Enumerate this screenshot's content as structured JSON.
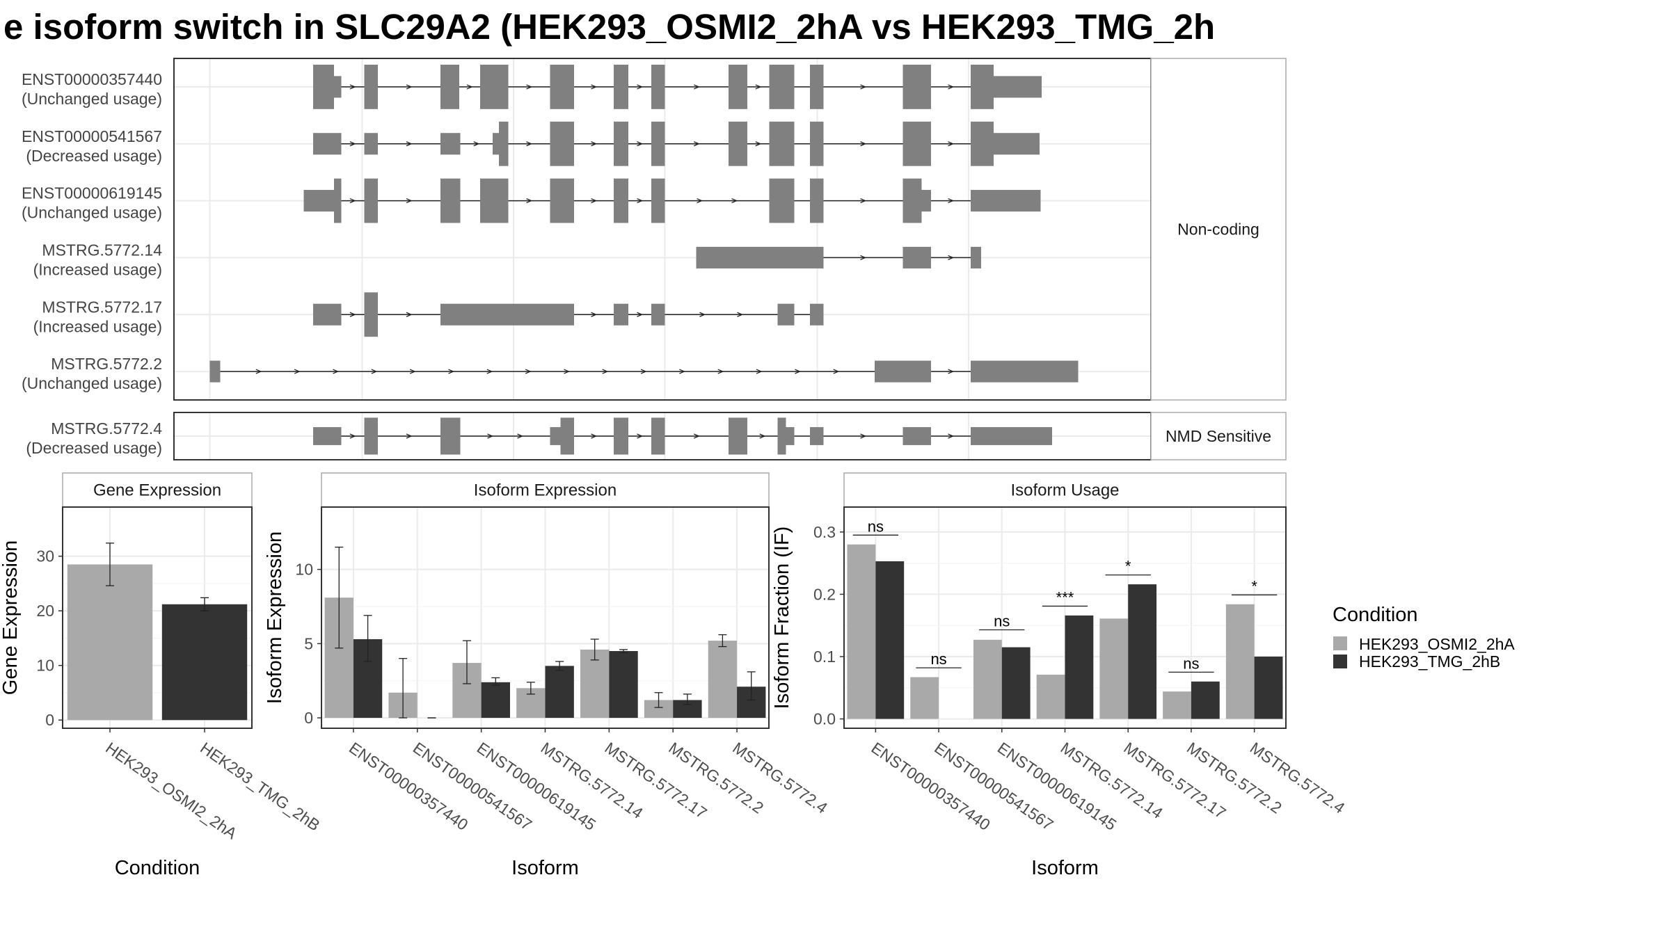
{
  "title": "e isoform switch in SLC29A2 (HEK293_OSMI2_2hA vs HEK293_TMG_2h",
  "colors": {
    "condA": "#a9a9a9",
    "condB": "#333333",
    "exon": "#808080",
    "grid": "#ebebeb",
    "panel_border": "#333333",
    "strip_border": "#aaaaaa"
  },
  "transcripts": {
    "groups": [
      {
        "label": "Non-coding",
        "tracks": [
          {
            "id": "ENST00000357440",
            "usage": "(Unchanged usage)",
            "exons": [
              [
                300,
                320
              ],
              [
                320,
                327
              ],
              [
                349,
                362
              ],
              [
                422,
                440
              ],
              [
                460,
                487
              ],
              [
                527,
                550
              ],
              [
                588,
                602
              ],
              [
                624,
                637
              ],
              [
                698,
                716
              ],
              [
                737,
                761
              ],
              [
                776,
                789
              ],
              [
                865,
                892
              ],
              [
                930,
                952
              ],
              [
                952,
                998
              ]
            ],
            "thick": [
              0,
              2,
              3,
              4,
              5,
              6,
              7,
              8,
              9,
              10,
              11,
              12
            ]
          },
          {
            "id": "ENST00000541567",
            "usage": "(Decreased usage)",
            "exons": [
              [
                300,
                327
              ],
              [
                349,
                362
              ],
              [
                422,
                441
              ],
              [
                472,
                478
              ],
              [
                478,
                487
              ],
              [
                527,
                550
              ],
              [
                588,
                602
              ],
              [
                624,
                637
              ],
              [
                698,
                716
              ],
              [
                737,
                761
              ],
              [
                776,
                789
              ],
              [
                865,
                892
              ],
              [
                930,
                952
              ],
              [
                952,
                996
              ]
            ],
            "thick": [
              4,
              5,
              6,
              7,
              8,
              9,
              10,
              11,
              12
            ]
          },
          {
            "id": "ENST00000619145",
            "usage": "(Unchanged usage)",
            "exons": [
              [
                291,
                320
              ],
              [
                320,
                327
              ],
              [
                349,
                362
              ],
              [
                422,
                441
              ],
              [
                460,
                487
              ],
              [
                527,
                550
              ],
              [
                588,
                602
              ],
              [
                624,
                637
              ],
              [
                737,
                761
              ],
              [
                776,
                789
              ],
              [
                865,
                883
              ],
              [
                883,
                892
              ],
              [
                930,
                997
              ]
            ],
            "thick": [
              1,
              2,
              3,
              4,
              5,
              6,
              7,
              8,
              9,
              10
            ]
          },
          {
            "id": "MSTRG.5772.14",
            "usage": "(Increased usage)",
            "exons": [
              [
                667,
                789
              ],
              [
                865,
                892
              ],
              [
                930,
                940
              ]
            ],
            "thick": []
          },
          {
            "id": "MSTRG.5772.17",
            "usage": "(Increased usage)",
            "exons": [
              [
                300,
                327
              ],
              [
                349,
                362
              ],
              [
                422,
                502
              ],
              [
                502,
                550
              ],
              [
                588,
                602
              ],
              [
                624,
                637
              ],
              [
                745,
                761
              ],
              [
                776,
                789
              ]
            ],
            "thick": [
              1
            ]
          },
          {
            "id": "MSTRG.5772.2",
            "usage": "(Unchanged usage)",
            "exons": [
              [
                201,
                211
              ],
              [
                838,
                892
              ],
              [
                930,
                1033
              ]
            ],
            "thick": []
          }
        ]
      },
      {
        "label": "NMD Sensitive",
        "tracks": [
          {
            "id": "MSTRG.5772.4",
            "usage": "(Decreased usage)",
            "exons": [
              [
                300,
                327
              ],
              [
                349,
                362
              ],
              [
                422,
                441
              ],
              [
                527,
                537
              ],
              [
                537,
                550
              ],
              [
                588,
                602
              ],
              [
                624,
                637
              ],
              [
                698,
                716
              ],
              [
                745,
                753
              ],
              [
                753,
                761
              ],
              [
                776,
                789
              ],
              [
                865,
                892
              ],
              [
                930,
                1008
              ]
            ],
            "thick": [
              1,
              2,
              4,
              5,
              6,
              7,
              8
            ]
          }
        ]
      }
    ]
  },
  "conditions": [
    "HEK293_OSMI2_2hA",
    "HEK293_TMG_2hB"
  ],
  "legend": {
    "title": "Condition",
    "items": [
      "HEK293_OSMI2_2hA",
      "HEK293_TMG_2hB"
    ]
  },
  "chart_data": [
    {
      "type": "bar",
      "title": "Gene Expression",
      "xlabel": "Condition",
      "ylabel": "Gene Expression",
      "categories": [
        "HEK293_OSMI2_2hA",
        "HEK293_TMG_2hB"
      ],
      "values": [
        28.5,
        21.2
      ],
      "error_low": [
        24.6,
        20.0
      ],
      "error_high": [
        32.4,
        22.4
      ],
      "ylim": [
        -1.5,
        39
      ],
      "yticks": [
        0,
        10,
        20,
        30
      ]
    },
    {
      "type": "bar",
      "title": "Isoform Expression",
      "xlabel": "Isoform",
      "ylabel": "Isoform Expression",
      "categories": [
        "ENST00000357440",
        "ENST00000541567",
        "ENST00000619145",
        "MSTRG.5772.14",
        "MSTRG.5772.17",
        "MSTRG.5772.2",
        "MSTRG.5772.4"
      ],
      "series": [
        {
          "name": "HEK293_OSMI2_2hA",
          "values": [
            8.1,
            1.7,
            3.7,
            2.0,
            4.6,
            1.2,
            5.2
          ],
          "error_low": [
            4.7,
            0,
            2.3,
            1.6,
            3.9,
            0.7,
            4.8
          ],
          "error_high": [
            11.5,
            4.0,
            5.2,
            2.4,
            5.3,
            1.7,
            5.6
          ]
        },
        {
          "name": "HEK293_TMG_2hB",
          "values": [
            5.3,
            0,
            2.4,
            3.5,
            4.5,
            1.2,
            2.1
          ],
          "error_low": [
            3.8,
            0,
            2.2,
            3.2,
            4.4,
            0.9,
            1.2
          ],
          "error_high": [
            6.9,
            0,
            2.7,
            3.8,
            4.6,
            1.6,
            3.1
          ]
        }
      ],
      "ylim": [
        -0.7,
        14.2
      ],
      "yticks": [
        0,
        5,
        10
      ]
    },
    {
      "type": "bar",
      "title": "Isoform Usage",
      "xlabel": "Isoform",
      "ylabel": "Isoform Fraction (IF)",
      "categories": [
        "ENST00000357440",
        "ENST00000541567",
        "ENST00000619145",
        "MSTRG.5772.14",
        "MSTRG.5772.17",
        "MSTRG.5772.2",
        "MSTRG.5772.4"
      ],
      "series": [
        {
          "name": "HEK293_OSMI2_2hA",
          "values": [
            0.28,
            0.067,
            0.127,
            0.071,
            0.161,
            0.044,
            0.184
          ]
        },
        {
          "name": "HEK293_TMG_2hB",
          "values": [
            0.253,
            0,
            0.115,
            0.166,
            0.216,
            0.06,
            0.1
          ]
        }
      ],
      "significance": [
        "ns",
        "ns",
        "ns",
        "***",
        "*",
        "ns",
        "*"
      ],
      "sig_y": [
        0.295,
        0.082,
        0.143,
        0.181,
        0.231,
        0.075,
        0.199
      ],
      "ylim": [
        -0.015,
        0.34
      ],
      "yticks": [
        0.0,
        0.1,
        0.2,
        0.3
      ],
      "ytick_labels": [
        "0.0",
        "0.1",
        "0.2",
        "0.3"
      ]
    }
  ]
}
